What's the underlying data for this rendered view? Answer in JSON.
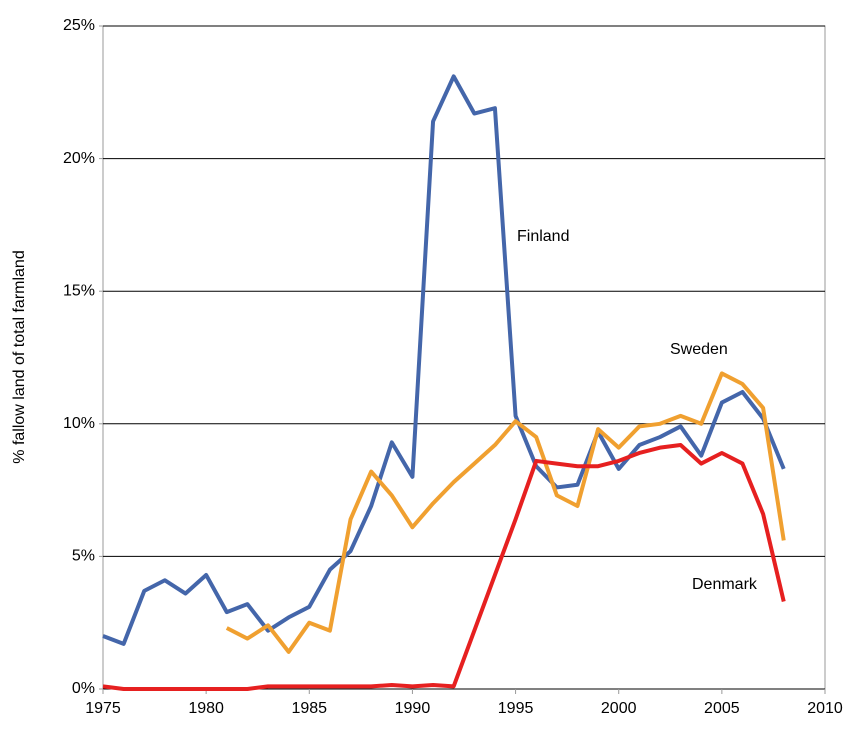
{
  "chart_data": {
    "type": "line",
    "ylabel": "% fallow land of total farmland",
    "x": [
      1975,
      1976,
      1977,
      1978,
      1979,
      1980,
      1981,
      1982,
      1983,
      1984,
      1985,
      1986,
      1987,
      1988,
      1989,
      1990,
      1991,
      1992,
      1993,
      1994,
      1995,
      1996,
      1997,
      1998,
      1999,
      2000,
      2001,
      2002,
      2003,
      2004,
      2005,
      2006,
      2007,
      2008
    ],
    "series": [
      {
        "name": "Finland",
        "color": "#4466aa",
        "values": [
          2.0,
          1.7,
          3.7,
          4.1,
          3.6,
          4.3,
          2.9,
          3.2,
          2.2,
          2.7,
          3.1,
          4.5,
          5.2,
          6.9,
          9.3,
          8.0,
          21.4,
          23.1,
          21.7,
          21.9,
          10.3,
          8.4,
          7.6,
          7.7,
          9.7,
          8.3,
          9.2,
          9.5,
          9.9,
          8.8,
          10.8,
          11.2,
          10.2,
          8.3
        ]
      },
      {
        "name": "Sweden",
        "color": "#f0a030",
        "values": [
          null,
          null,
          null,
          null,
          null,
          null,
          2.3,
          1.9,
          2.4,
          1.4,
          2.5,
          2.2,
          6.4,
          8.2,
          7.3,
          6.1,
          7.0,
          7.8,
          8.5,
          9.2,
          10.1,
          9.5,
          7.3,
          6.9,
          9.8,
          9.1,
          9.9,
          10.0,
          10.3,
          10.0,
          11.9,
          11.5,
          10.6,
          5.6
        ]
      },
      {
        "name": "Denmark",
        "color": "#e62020",
        "values": [
          0.1,
          0.0,
          0.0,
          0.0,
          0.0,
          0.0,
          0.0,
          0.0,
          0.1,
          0.1,
          0.1,
          0.1,
          0.1,
          0.1,
          0.15,
          0.1,
          0.15,
          0.1,
          2.2,
          4.3,
          6.4,
          8.6,
          8.5,
          8.4,
          8.4,
          8.6,
          8.9,
          9.1,
          9.2,
          8.5,
          8.9,
          8.5,
          6.6,
          3.3
        ]
      }
    ],
    "xlim": [
      1975,
      2010
    ],
    "xticks": [
      1975,
      1980,
      1985,
      1990,
      1995,
      2000,
      2005,
      2010
    ],
    "ylim": [
      0,
      25
    ],
    "yticks": [
      {
        "value": 0,
        "label": "0%"
      },
      {
        "value": 5,
        "label": "5%"
      },
      {
        "value": 10,
        "label": "10%"
      },
      {
        "value": 15,
        "label": "15%"
      },
      {
        "value": 20,
        "label": "20%"
      },
      {
        "value": 25,
        "label": "25%"
      }
    ],
    "grid": true,
    "legend": false
  }
}
